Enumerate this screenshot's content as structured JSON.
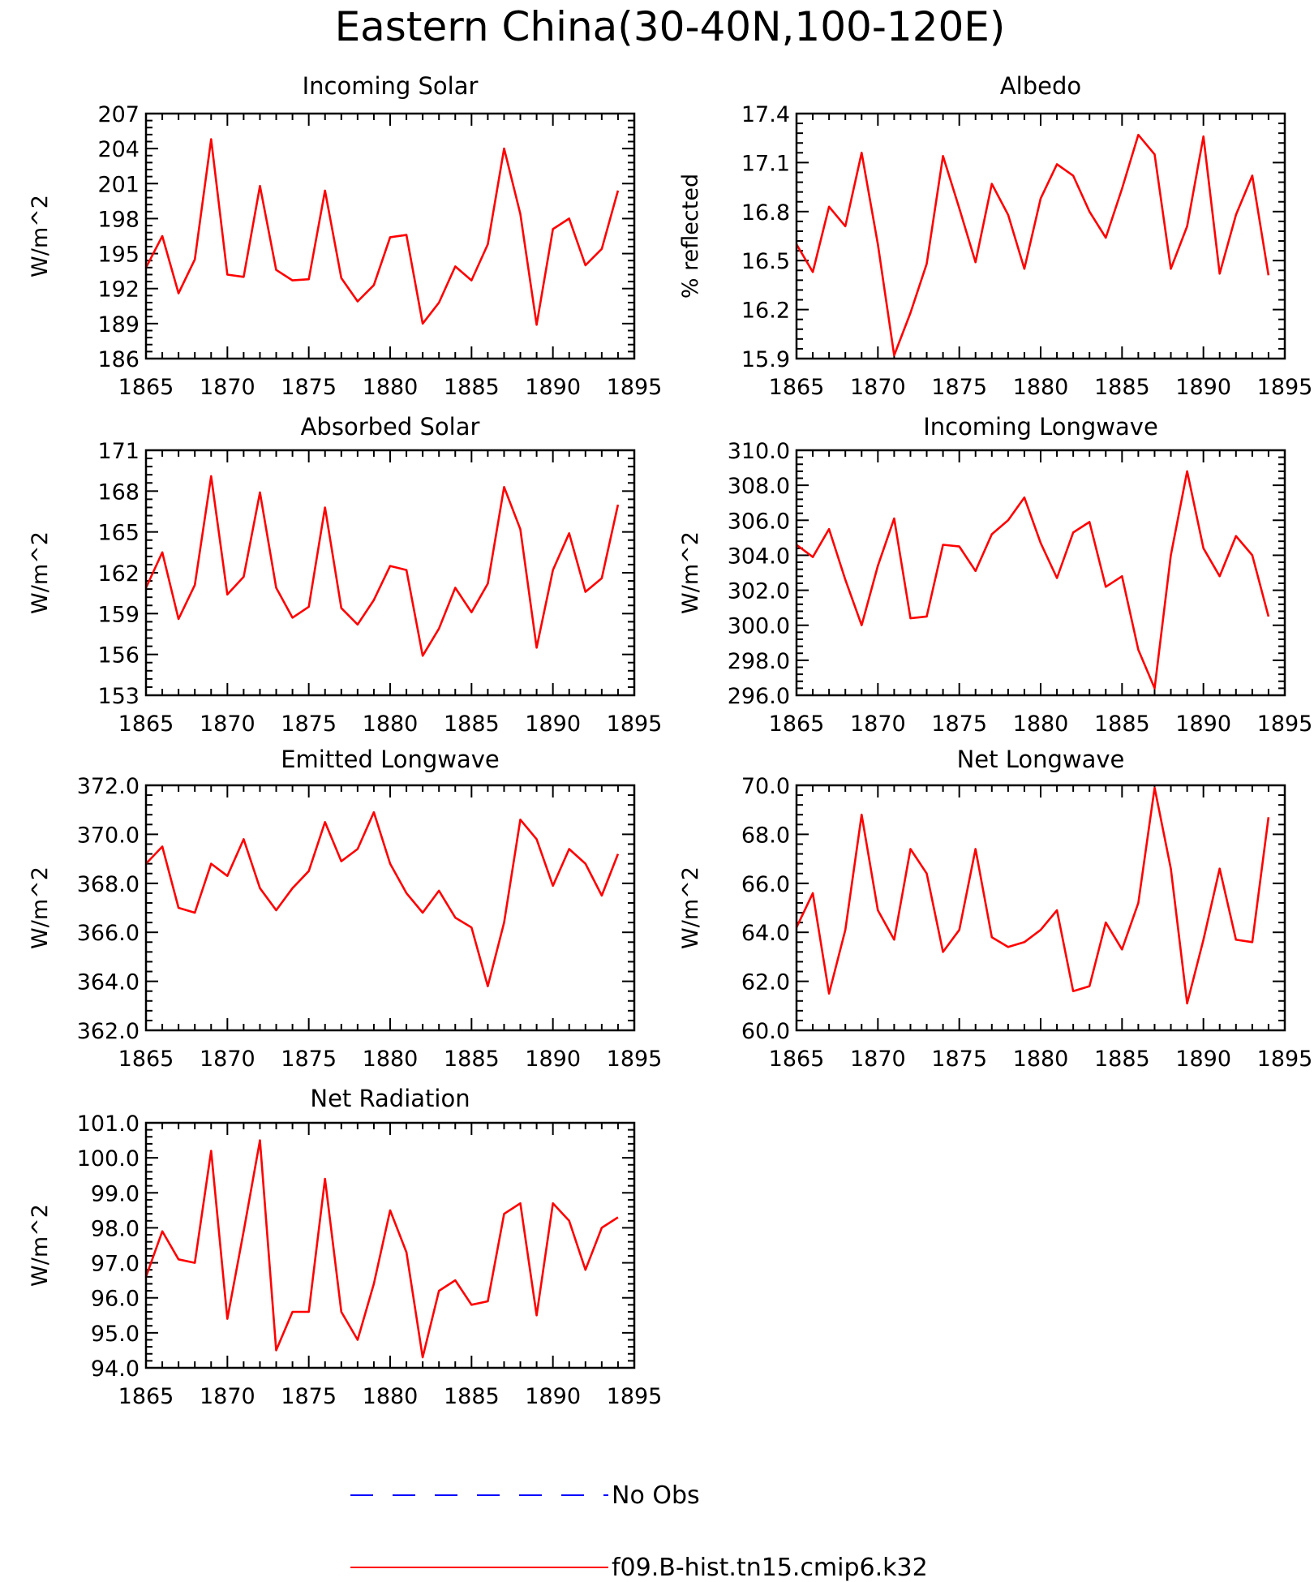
{
  "title": "Eastern China(30-40N,100-120E)",
  "legend": [
    {
      "label": "No Obs",
      "color": "#0000ff",
      "style": "dashed"
    },
    {
      "label": "f09.B-hist.tn15.cmip6.k32",
      "color": "#ff0000",
      "style": "solid"
    }
  ],
  "chart_data": [
    {
      "type": "line",
      "title": "Incoming Solar",
      "ylabel": "W/m^2",
      "xlim": [
        1865,
        1895
      ],
      "ylim": [
        186,
        207
      ],
      "xticks": [
        "1865",
        "1870",
        "1875",
        "1880",
        "1885",
        "1890",
        "1895"
      ],
      "yticks": [
        "186",
        "189",
        "192",
        "195",
        "198",
        "201",
        "204",
        "207"
      ],
      "x": [
        1865,
        1866,
        1867,
        1868,
        1869,
        1870,
        1871,
        1872,
        1873,
        1874,
        1875,
        1876,
        1877,
        1878,
        1879,
        1880,
        1881,
        1882,
        1883,
        1884,
        1885,
        1886,
        1887,
        1888,
        1889,
        1890,
        1891,
        1892,
        1893,
        1894
      ],
      "series": [
        {
          "color": "#ff0000",
          "values": [
            193.8,
            196.5,
            191.6,
            194.5,
            204.8,
            193.2,
            193.0,
            200.8,
            193.6,
            192.7,
            192.8,
            200.4,
            192.9,
            190.9,
            192.3,
            196.4,
            196.6,
            189.0,
            190.8,
            193.9,
            192.7,
            195.8,
            204.0,
            198.4,
            188.9,
            197.1,
            198.0,
            194.0,
            195.4,
            200.4
          ]
        }
      ]
    },
    {
      "type": "line",
      "title": "Albedo",
      "ylabel": "% reflected",
      "xlim": [
        1865,
        1895
      ],
      "ylim": [
        15.9,
        17.4
      ],
      "xticks": [
        "1865",
        "1870",
        "1875",
        "1880",
        "1885",
        "1890",
        "1895"
      ],
      "yticks": [
        "15.9",
        "16.2",
        "16.5",
        "16.8",
        "17.1",
        "17.4"
      ],
      "x": [
        1865,
        1866,
        1867,
        1868,
        1869,
        1870,
        1871,
        1872,
        1873,
        1874,
        1875,
        1876,
        1877,
        1878,
        1879,
        1880,
        1881,
        1882,
        1883,
        1884,
        1885,
        1886,
        1887,
        1888,
        1889,
        1890,
        1891,
        1892,
        1893,
        1894
      ],
      "series": [
        {
          "color": "#ff0000",
          "values": [
            16.6,
            16.43,
            16.83,
            16.71,
            17.16,
            16.6,
            15.92,
            16.18,
            16.48,
            17.14,
            16.82,
            16.49,
            16.97,
            16.78,
            16.45,
            16.88,
            17.09,
            17.02,
            16.8,
            16.64,
            16.94,
            17.27,
            17.15,
            16.45,
            16.71,
            17.26,
            16.42,
            16.78,
            17.02,
            16.41
          ]
        }
      ]
    },
    {
      "type": "line",
      "title": "Absorbed Solar",
      "ylabel": "W/m^2",
      "xlim": [
        1865,
        1895
      ],
      "ylim": [
        153,
        171
      ],
      "xticks": [
        "1865",
        "1870",
        "1875",
        "1880",
        "1885",
        "1890",
        "1895"
      ],
      "yticks": [
        "153",
        "156",
        "159",
        "162",
        "165",
        "168",
        "171"
      ],
      "x": [
        1865,
        1866,
        1867,
        1868,
        1869,
        1870,
        1871,
        1872,
        1873,
        1874,
        1875,
        1876,
        1877,
        1878,
        1879,
        1880,
        1881,
        1882,
        1883,
        1884,
        1885,
        1886,
        1887,
        1888,
        1889,
        1890,
        1891,
        1892,
        1893,
        1894
      ],
      "series": [
        {
          "color": "#ff0000",
          "values": [
            160.9,
            163.5,
            158.6,
            161.1,
            169.1,
            160.4,
            161.7,
            167.9,
            160.9,
            158.7,
            159.5,
            166.8,
            159.4,
            158.2,
            160.0,
            162.5,
            162.2,
            155.9,
            157.9,
            160.9,
            159.1,
            161.2,
            168.3,
            165.2,
            156.5,
            162.2,
            164.9,
            160.6,
            161.6,
            167.0
          ]
        }
      ]
    },
    {
      "type": "line",
      "title": "Incoming Longwave",
      "ylabel": "W/m^2",
      "xlim": [
        1865,
        1895
      ],
      "ylim": [
        296,
        310
      ],
      "xticks": [
        "1865",
        "1870",
        "1875",
        "1880",
        "1885",
        "1890",
        "1895"
      ],
      "yticks": [
        "296.0",
        "298.0",
        "300.0",
        "302.0",
        "304.0",
        "306.0",
        "308.0",
        "310.0"
      ],
      "x": [
        1865,
        1866,
        1867,
        1868,
        1869,
        1870,
        1871,
        1872,
        1873,
        1874,
        1875,
        1876,
        1877,
        1878,
        1879,
        1880,
        1881,
        1882,
        1883,
        1884,
        1885,
        1886,
        1887,
        1888,
        1889,
        1890,
        1891,
        1892,
        1893,
        1894
      ],
      "series": [
        {
          "color": "#ff0000",
          "values": [
            304.6,
            303.9,
            305.5,
            302.6,
            300.0,
            303.4,
            306.1,
            300.4,
            300.5,
            304.6,
            304.5,
            303.1,
            305.2,
            306.0,
            307.3,
            304.7,
            302.7,
            305.3,
            305.9,
            302.2,
            302.8,
            298.6,
            296.4,
            304.0,
            308.8,
            304.4,
            302.8,
            305.1,
            304.0,
            300.5
          ]
        }
      ]
    },
    {
      "type": "line",
      "title": "Emitted Longwave",
      "ylabel": "W/m^2",
      "xlim": [
        1865,
        1895
      ],
      "ylim": [
        362,
        372
      ],
      "xticks": [
        "1865",
        "1870",
        "1875",
        "1880",
        "1885",
        "1890",
        "1895"
      ],
      "yticks": [
        "362.0",
        "364.0",
        "366.0",
        "368.0",
        "370.0",
        "372.0"
      ],
      "x": [
        1865,
        1866,
        1867,
        1868,
        1869,
        1870,
        1871,
        1872,
        1873,
        1874,
        1875,
        1876,
        1877,
        1878,
        1879,
        1880,
        1881,
        1882,
        1883,
        1884,
        1885,
        1886,
        1887,
        1888,
        1889,
        1890,
        1891,
        1892,
        1893,
        1894
      ],
      "series": [
        {
          "color": "#ff0000",
          "values": [
            368.8,
            369.5,
            367.0,
            366.8,
            368.8,
            368.3,
            369.8,
            367.8,
            366.9,
            367.8,
            368.5,
            370.5,
            368.9,
            369.4,
            370.9,
            368.8,
            367.6,
            366.8,
            367.7,
            366.6,
            366.2,
            363.8,
            366.4,
            370.6,
            369.8,
            367.9,
            369.4,
            368.8,
            367.5,
            369.2
          ]
        }
      ]
    },
    {
      "type": "line",
      "title": "Net Longwave",
      "ylabel": "W/m^2",
      "xlim": [
        1865,
        1895
      ],
      "ylim": [
        60,
        70
      ],
      "xticks": [
        "1865",
        "1870",
        "1875",
        "1880",
        "1885",
        "1890",
        "1895"
      ],
      "yticks": [
        "60.0",
        "62.0",
        "64.0",
        "66.0",
        "68.0",
        "70.0"
      ],
      "x": [
        1865,
        1866,
        1867,
        1868,
        1869,
        1870,
        1871,
        1872,
        1873,
        1874,
        1875,
        1876,
        1877,
        1878,
        1879,
        1880,
        1881,
        1882,
        1883,
        1884,
        1885,
        1886,
        1887,
        1888,
        1889,
        1890,
        1891,
        1892,
        1893,
        1894
      ],
      "series": [
        {
          "color": "#ff0000",
          "values": [
            64.2,
            65.6,
            61.5,
            64.1,
            68.8,
            64.9,
            63.7,
            67.4,
            66.4,
            63.2,
            64.1,
            67.4,
            63.8,
            63.4,
            63.6,
            64.1,
            64.9,
            61.6,
            61.8,
            64.4,
            63.3,
            65.2,
            69.9,
            66.6,
            61.1,
            63.7,
            66.6,
            63.7,
            63.6,
            68.7
          ]
        }
      ]
    },
    {
      "type": "line",
      "title": "Net Radiation",
      "ylabel": "W/m^2",
      "xlim": [
        1865,
        1895
      ],
      "ylim": [
        94,
        101
      ],
      "xticks": [
        "1865",
        "1870",
        "1875",
        "1880",
        "1885",
        "1890",
        "1895"
      ],
      "yticks": [
        "94.0",
        "95.0",
        "96.0",
        "97.0",
        "98.0",
        "99.0",
        "100.0",
        "101.0"
      ],
      "x": [
        1865,
        1866,
        1867,
        1868,
        1869,
        1870,
        1871,
        1872,
        1873,
        1874,
        1875,
        1876,
        1877,
        1878,
        1879,
        1880,
        1881,
        1882,
        1883,
        1884,
        1885,
        1886,
        1887,
        1888,
        1889,
        1890,
        1891,
        1892,
        1893,
        1894
      ],
      "series": [
        {
          "color": "#ff0000",
          "values": [
            96.6,
            97.9,
            97.1,
            97.0,
            100.2,
            95.4,
            97.9,
            100.5,
            94.5,
            95.6,
            95.6,
            99.4,
            95.6,
            94.8,
            96.4,
            98.5,
            97.3,
            94.3,
            96.2,
            96.5,
            95.8,
            95.9,
            98.4,
            98.7,
            95.5,
            98.7,
            98.2,
            96.8,
            98.0,
            98.3
          ]
        }
      ]
    }
  ]
}
